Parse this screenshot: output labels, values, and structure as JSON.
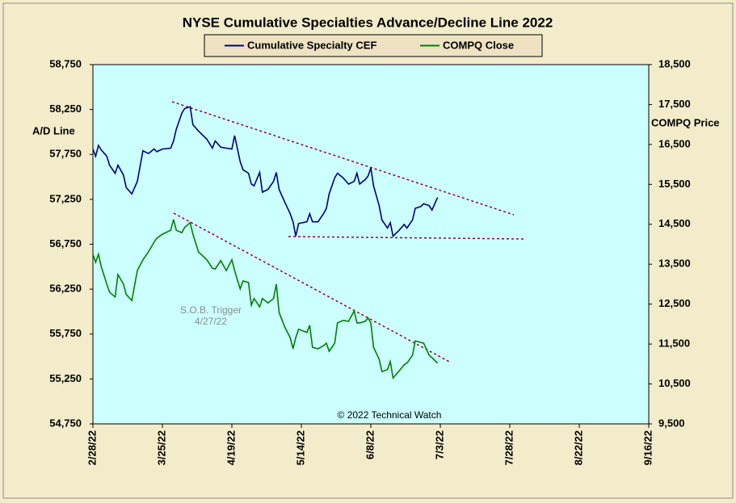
{
  "chart_data": {
    "type": "line",
    "title": "NYSE Cumulative  Specialties  Advance/Decline  Line  2022",
    "y_label": "A/D Line",
    "y2_label": "COMPQ Price",
    "annotations": [
      "S.O.B. Trigger",
      "4/27/22",
      "© 2022 Technical Watch"
    ],
    "x": [
      "2/28/22",
      "3/1/22",
      "3/2/22",
      "3/3/22",
      "3/5/22",
      "3/6/22",
      "3/8/22",
      "3/9/22",
      "3/11/22",
      "3/12/22",
      "3/14/22",
      "3/16/22",
      "3/18/22",
      "3/20/22",
      "3/22/22",
      "3/23/22",
      "3/25/22",
      "3/28/22",
      "3/29/22",
      "3/30/22",
      "4/1/22",
      "4/2/22",
      "4/4/22",
      "4/5/22",
      "4/7/22",
      "4/10/22",
      "4/12/22",
      "4/13/22",
      "4/15/22",
      "4/17/22",
      "4/19/22",
      "4/20/22",
      "4/22/22",
      "4/23/22",
      "4/25/22",
      "4/26/22",
      "4/27/22",
      "4/29/22",
      "4/30/22",
      "5/2/22",
      "5/4/22",
      "5/5/22",
      "5/6/22",
      "5/8/22",
      "5/10/22",
      "5/11/22",
      "5/12/22",
      "5/13/22",
      "5/16/22",
      "5/17/22",
      "5/18/22",
      "5/20/22",
      "5/22/22",
      "5/23/22",
      "5/24/22",
      "5/26/22",
      "5/27/22",
      "5/29/22",
      "5/31/22",
      "6/2/22",
      "6/3/22",
      "6/4/22",
      "6/6/22",
      "6/7/22",
      "6/8/22",
      "6/9/22",
      "6/11/22",
      "6/12/22",
      "6/14/22",
      "6/15/22",
      "6/16/22",
      "6/18/22",
      "6/20/22",
      "6/21/22",
      "6/23/22",
      "6/24/22",
      "6/26/22",
      "6/27/22",
      "6/29/22",
      "6/30/22",
      "7/2/22"
    ],
    "series": [
      {
        "name": "Cumulative Specialty CEF",
        "color": "#000080",
        "axis": "y",
        "values": [
          57810,
          57730,
          57850,
          57800,
          57730,
          57630,
          57540,
          57630,
          57520,
          57380,
          57310,
          57450,
          57790,
          57760,
          57810,
          57780,
          57810,
          57820,
          57900,
          58030,
          58210,
          58260,
          58280,
          58080,
          58010,
          57920,
          57820,
          57900,
          57830,
          57820,
          57810,
          57960,
          57670,
          57580,
          57540,
          57420,
          57400,
          57550,
          57330,
          57360,
          57450,
          57550,
          57360,
          57220,
          57090,
          57000,
          56840,
          56980,
          57000,
          57090,
          57000,
          57000,
          57090,
          57150,
          57310,
          57490,
          57540,
          57490,
          57420,
          57450,
          57540,
          57420,
          57470,
          57510,
          57600,
          57400,
          57180,
          57020,
          56930,
          56990,
          56840,
          56900,
          56970,
          56930,
          57020,
          57150,
          57170,
          57200,
          57180,
          57130,
          57270
        ]
      },
      {
        "name": "COMPQ Close",
        "color": "#008000",
        "axis": "y2",
        "values": [
          13750,
          13550,
          13750,
          13440,
          13000,
          12800,
          12680,
          13240,
          13000,
          12740,
          12590,
          13340,
          13610,
          13810,
          14050,
          14150,
          14250,
          14350,
          14620,
          14350,
          14290,
          14420,
          14540,
          14250,
          13810,
          13610,
          13400,
          13380,
          13590,
          13340,
          13610,
          13340,
          12880,
          13080,
          13040,
          12470,
          12640,
          12430,
          12640,
          12530,
          12640,
          13000,
          12290,
          11930,
          11660,
          11380,
          11660,
          11870,
          11790,
          11970,
          11420,
          11380,
          11460,
          11520,
          11320,
          11520,
          12030,
          12090,
          12070,
          12330,
          12030,
          12030,
          12070,
          12150,
          12030,
          11420,
          11120,
          10810,
          10860,
          11060,
          10650,
          10810,
          10980,
          11020,
          11220,
          11580,
          11540,
          11520,
          11220,
          11160,
          11020
        ]
      }
    ],
    "xlim": [
      "2/28/22",
      "9/16/22"
    ],
    "xticks": [
      "2/28/22",
      "3/25/22",
      "4/19/22",
      "5/14/22",
      "6/8/22",
      "7/3/22",
      "7/28/22",
      "8/22/22",
      "9/16/22"
    ],
    "ylim": [
      54750,
      58750
    ],
    "yticks": [
      {
        "value": 54750,
        "label": "54,750"
      },
      {
        "value": 55250,
        "label": "55,250"
      },
      {
        "value": 55750,
        "label": "55,750"
      },
      {
        "value": 56250,
        "label": "56,250"
      },
      {
        "value": 56750,
        "label": "56,750"
      },
      {
        "value": 57250,
        "label": "57,250"
      },
      {
        "value": 57750,
        "label": "57,750"
      },
      {
        "value": 58250,
        "label": "58,250"
      },
      {
        "value": 58750,
        "label": "58,750"
      }
    ],
    "y2lim": [
      9500,
      18500
    ],
    "y2ticks": [
      {
        "value": 9500,
        "label": "9,500"
      },
      {
        "value": 10500,
        "label": "10,500"
      },
      {
        "value": 11500,
        "label": "11,500"
      },
      {
        "value": 12500,
        "label": "12,500"
      },
      {
        "value": 13500,
        "label": "13,500"
      },
      {
        "value": 14500,
        "label": "14,500"
      },
      {
        "value": 15500,
        "label": "15,500"
      },
      {
        "value": 16500,
        "label": "16,500"
      },
      {
        "value": 17500,
        "label": "17,500"
      },
      {
        "value": 18500,
        "label": "18,500"
      }
    ],
    "grid": false,
    "legend": "top"
  }
}
